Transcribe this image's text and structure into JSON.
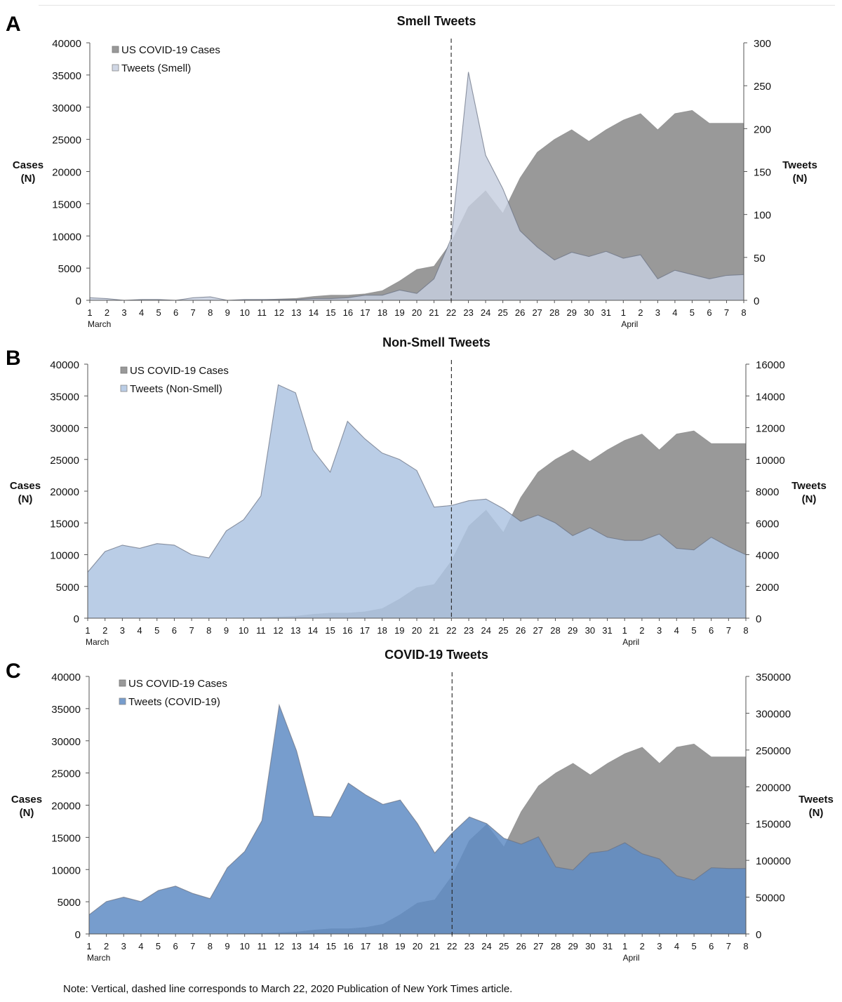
{
  "note": "Note: Vertical, dashed line corresponds to March 22, 2020 Publication of New York Times article.",
  "chart_data": [
    {
      "panel_letter": "A",
      "type": "area",
      "title": "Smell Tweets",
      "left_axis_label": [
        "Cases",
        "(N)"
      ],
      "right_axis_label": [
        "Tweets",
        "(N)"
      ],
      "x": [
        "1",
        "2",
        "3",
        "4",
        "5",
        "6",
        "7",
        "8",
        "9",
        "10",
        "11",
        "12",
        "13",
        "14",
        "15",
        "16",
        "17",
        "18",
        "19",
        "20",
        "21",
        "22",
        "23",
        "24",
        "25",
        "26",
        "27",
        "28",
        "29",
        "30",
        "31",
        "1",
        "2",
        "3",
        "4",
        "5",
        "6",
        "7",
        "8"
      ],
      "month_labels": [
        {
          "index": 0,
          "label": "March"
        },
        {
          "index": 31,
          "label": "April"
        }
      ],
      "highlight_x": "22",
      "ylim_left": [
        0,
        40000
      ],
      "yticks_left": [
        0,
        5000,
        10000,
        15000,
        20000,
        25000,
        30000,
        35000,
        40000
      ],
      "ylim_right": [
        0,
        300
      ],
      "yticks_right": [
        0,
        50,
        100,
        150,
        200,
        250,
        300
      ],
      "legend_position": "top-left",
      "series": [
        {
          "name": "US COVID-19 Cases",
          "axis": "left",
          "color": "#999999",
          "opacity": 1,
          "values": [
            0,
            0,
            0,
            0,
            0,
            0,
            0,
            0,
            0,
            50,
            100,
            200,
            300,
            600,
            800,
            800,
            1000,
            1500,
            3000,
            4800,
            5300,
            9000,
            14500,
            17000,
            13500,
            19000,
            23000,
            25000,
            26500,
            24700,
            26500,
            28000,
            29000,
            26500,
            29000,
            29500,
            27500,
            27500,
            27500
          ]
        },
        {
          "name": "Tweets (Smell)",
          "axis": "right",
          "color": "#c6cedf",
          "opacity": 0.82,
          "values": [
            3,
            2,
            0,
            1,
            1,
            0,
            3,
            4,
            0,
            1,
            1,
            1,
            1,
            2,
            2,
            3,
            6,
            6,
            12,
            8,
            25,
            72,
            266,
            169,
            130,
            81,
            62,
            47,
            56,
            51,
            57,
            49,
            53,
            25,
            35,
            30,
            25,
            29,
            30
          ]
        }
      ]
    },
    {
      "panel_letter": "B",
      "type": "area",
      "title": "Non-Smell Tweets",
      "left_axis_label": [
        "Cases",
        "(N)"
      ],
      "right_axis_label": [
        "Tweets",
        "(N)"
      ],
      "x": [
        "1",
        "2",
        "3",
        "4",
        "5",
        "6",
        "7",
        "8",
        "9",
        "10",
        "11",
        "12",
        "13",
        "14",
        "15",
        "16",
        "17",
        "18",
        "19",
        "20",
        "21",
        "22",
        "23",
        "24",
        "25",
        "26",
        "27",
        "28",
        "29",
        "30",
        "31",
        "1",
        "2",
        "3",
        "4",
        "5",
        "6",
        "7",
        "8"
      ],
      "month_labels": [
        {
          "index": 0,
          "label": "March"
        },
        {
          "index": 31,
          "label": "April"
        }
      ],
      "highlight_x": "22",
      "ylim_left": [
        0,
        40000
      ],
      "yticks_left": [
        0,
        5000,
        10000,
        15000,
        20000,
        25000,
        30000,
        35000,
        40000
      ],
      "ylim_right": [
        0,
        16000
      ],
      "yticks_right": [
        0,
        2000,
        4000,
        6000,
        8000,
        10000,
        12000,
        14000,
        16000
      ],
      "legend_position": "top-left",
      "series": [
        {
          "name": "US COVID-19 Cases",
          "axis": "left",
          "color": "#999999",
          "opacity": 1,
          "values": [
            0,
            0,
            0,
            0,
            0,
            0,
            0,
            0,
            0,
            50,
            100,
            200,
            300,
            600,
            800,
            800,
            1000,
            1500,
            3000,
            4800,
            5300,
            9000,
            14500,
            17000,
            13500,
            19000,
            23000,
            25000,
            26500,
            24700,
            26500,
            28000,
            29000,
            26500,
            29000,
            29500,
            27500,
            27500,
            27500
          ]
        },
        {
          "name": "Tweets (Non-Smell)",
          "axis": "right",
          "color": "#aec4e2",
          "opacity": 0.85,
          "values": [
            2900,
            4200,
            4600,
            4400,
            4700,
            4600,
            4000,
            3800,
            5500,
            6200,
            7700,
            14700,
            14200,
            10600,
            9200,
            12400,
            11300,
            10400,
            10000,
            9300,
            7000,
            7100,
            7400,
            7500,
            6900,
            6100,
            6500,
            6000,
            5200,
            5700,
            5100,
            4900,
            4900,
            5300,
            4400,
            4300,
            5100,
            4500,
            4000
          ]
        }
      ]
    },
    {
      "panel_letter": "C",
      "type": "area",
      "title": "COVID-19 Tweets",
      "left_axis_label": [
        "Cases",
        "(N)"
      ],
      "right_axis_label": [
        "Tweets",
        "(N)"
      ],
      "x": [
        "1",
        "2",
        "3",
        "4",
        "5",
        "6",
        "7",
        "8",
        "9",
        "10",
        "11",
        "12",
        "13",
        "14",
        "15",
        "16",
        "17",
        "18",
        "19",
        "20",
        "21",
        "22",
        "23",
        "24",
        "25",
        "26",
        "27",
        "28",
        "29",
        "30",
        "31",
        "1",
        "2",
        "3",
        "4",
        "5",
        "6",
        "7",
        "8"
      ],
      "month_labels": [
        {
          "index": 0,
          "label": "March"
        },
        {
          "index": 31,
          "label": "April"
        }
      ],
      "highlight_x": "22",
      "ylim_left": [
        0,
        40000
      ],
      "yticks_left": [
        0,
        5000,
        10000,
        15000,
        20000,
        25000,
        30000,
        35000,
        40000
      ],
      "ylim_right": [
        0,
        350000
      ],
      "yticks_right": [
        0,
        50000,
        100000,
        150000,
        200000,
        250000,
        300000,
        350000
      ],
      "legend_position": "top-left",
      "series": [
        {
          "name": "US COVID-19 Cases",
          "axis": "left",
          "color": "#999999",
          "opacity": 1,
          "values": [
            0,
            0,
            0,
            0,
            0,
            0,
            0,
            0,
            0,
            50,
            100,
            200,
            300,
            600,
            800,
            800,
            1000,
            1500,
            3000,
            4800,
            5300,
            9000,
            14500,
            17000,
            13500,
            19000,
            23000,
            25000,
            26500,
            24700,
            26500,
            28000,
            29000,
            26500,
            29000,
            29500,
            27500,
            27500,
            27500
          ]
        },
        {
          "name": "Tweets (COVID-19)",
          "axis": "right",
          "color": "#5f8cc4",
          "opacity": 0.85,
          "values": [
            26000,
            44000,
            50000,
            44000,
            59000,
            65000,
            55000,
            48000,
            90000,
            112000,
            154000,
            311000,
            249000,
            160000,
            159000,
            205000,
            189000,
            176000,
            182000,
            150000,
            110000,
            137000,
            159000,
            150000,
            130000,
            122000,
            132000,
            91000,
            87000,
            110000,
            113000,
            124000,
            109000,
            102000,
            79000,
            73000,
            90000,
            89000,
            89000
          ]
        }
      ]
    }
  ]
}
